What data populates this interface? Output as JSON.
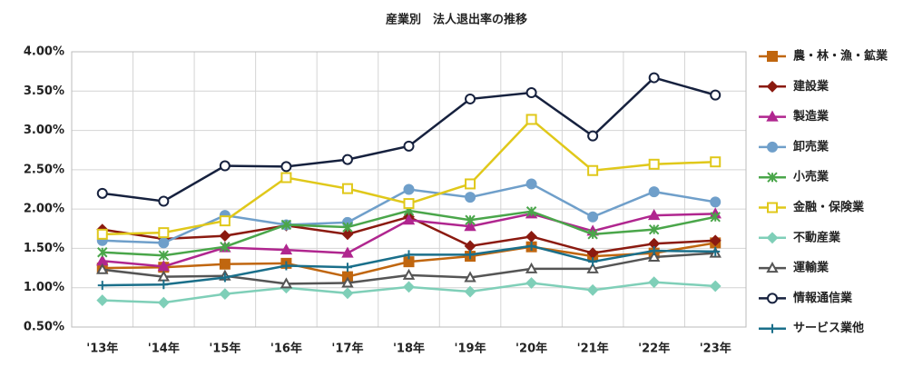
{
  "chart_data": {
    "type": "line",
    "title": "産業別　法人退出率の推移",
    "categories": [
      "'13年",
      "'14年",
      "'15年",
      "'16年",
      "'17年",
      "'18年",
      "'19年",
      "'20年",
      "'21年",
      "'22年",
      "'23年"
    ],
    "ylim": [
      0.5,
      4.0
    ],
    "yticks": [
      {
        "value": 0.5,
        "label": "0.50%"
      },
      {
        "value": 1.0,
        "label": "1.00%"
      },
      {
        "value": 1.5,
        "label": "1.50%"
      },
      {
        "value": 2.0,
        "label": "2.00%"
      },
      {
        "value": 2.5,
        "label": "2.50%"
      },
      {
        "value": 3.0,
        "label": "3.00%"
      },
      {
        "value": 3.5,
        "label": "3.50%"
      },
      {
        "value": 4.0,
        "label": "4.00%"
      }
    ],
    "grid": true,
    "legend": "right",
    "series": [
      {
        "name": "農・林・漁・鉱業",
        "color": "#c0660f",
        "marker": "square",
        "filled": true,
        "values": [
          1.25,
          1.26,
          1.3,
          1.31,
          1.14,
          1.33,
          1.4,
          1.52,
          1.4,
          1.44,
          1.57
        ]
      },
      {
        "name": "建設業",
        "color": "#8b1a10",
        "marker": "diamond",
        "filled": true,
        "values": [
          1.74,
          1.62,
          1.66,
          1.79,
          1.68,
          1.9,
          1.53,
          1.65,
          1.44,
          1.56,
          1.6
        ]
      },
      {
        "name": "製造業",
        "color": "#b0268f",
        "marker": "triangle",
        "filled": true,
        "values": [
          1.34,
          1.27,
          1.51,
          1.48,
          1.44,
          1.86,
          1.78,
          1.94,
          1.72,
          1.92,
          1.94
        ]
      },
      {
        "name": "卸売業",
        "color": "#6f9fca",
        "marker": "circle",
        "filled": true,
        "values": [
          1.6,
          1.57,
          1.92,
          1.8,
          1.83,
          2.25,
          2.15,
          2.32,
          1.9,
          2.22,
          2.09
        ]
      },
      {
        "name": "小売業",
        "color": "#4aa64a",
        "marker": "star",
        "filled": true,
        "values": [
          1.45,
          1.41,
          1.52,
          1.8,
          1.77,
          1.98,
          1.86,
          1.97,
          1.68,
          1.74,
          1.9
        ]
      },
      {
        "name": "金融・保険業",
        "color": "#e0c81a",
        "marker": "square",
        "filled": false,
        "values": [
          1.68,
          1.7,
          1.85,
          2.4,
          2.26,
          2.07,
          2.32,
          3.14,
          2.49,
          2.57,
          2.6
        ]
      },
      {
        "name": "不動産業",
        "color": "#7fcfb8",
        "marker": "diamond",
        "filled": true,
        "values": [
          0.84,
          0.81,
          0.92,
          1.0,
          0.93,
          1.01,
          0.95,
          1.06,
          0.97,
          1.07,
          1.02
        ]
      },
      {
        "name": "運輸業",
        "color": "#555555",
        "marker": "triangle",
        "filled": false,
        "values": [
          1.23,
          1.14,
          1.15,
          1.05,
          1.06,
          1.16,
          1.13,
          1.24,
          1.24,
          1.39,
          1.44
        ]
      },
      {
        "name": "情報通信業",
        "color": "#16213e",
        "marker": "circle",
        "filled": false,
        "values": [
          2.2,
          2.1,
          2.55,
          2.54,
          2.63,
          2.8,
          3.4,
          3.48,
          2.93,
          3.67,
          3.45
        ]
      },
      {
        "name": "サービス業他",
        "color": "#1a6f8a",
        "marker": "plus",
        "filled": true,
        "values": [
          1.03,
          1.04,
          1.13,
          1.28,
          1.26,
          1.42,
          1.42,
          1.53,
          1.33,
          1.47,
          1.46
        ]
      }
    ]
  }
}
